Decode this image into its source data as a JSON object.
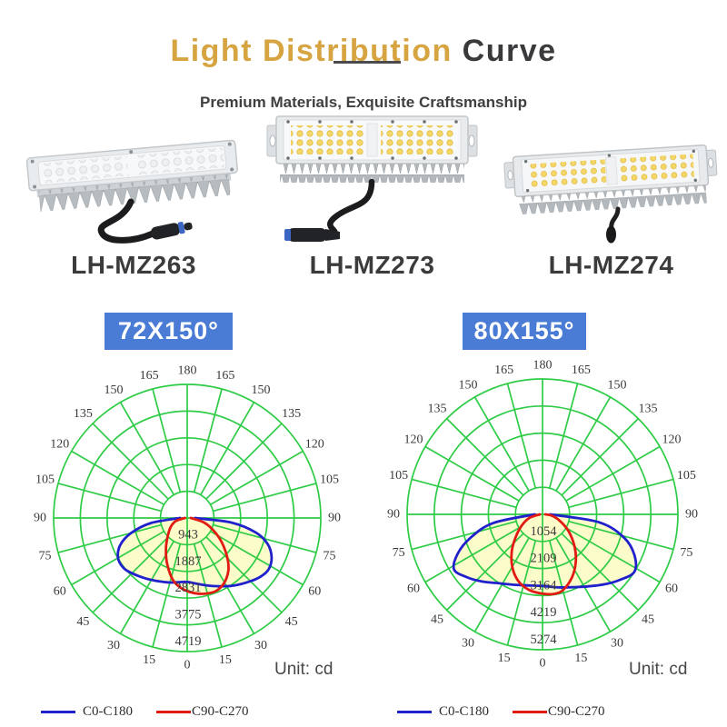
{
  "theme": {
    "accent_gold": "#d6a440",
    "title_dark": "#3a3a3c",
    "badge_blue": "#4b7cd5",
    "text_gray": "#3f3f41"
  },
  "header": {
    "title_highlight": "Light Distribution ",
    "title_rest": "Curve",
    "subtitle": "Premium Materials, Exquisite Craftsmanship"
  },
  "products": [
    {
      "model": "LH-MZ263"
    },
    {
      "model": "LH-MZ273"
    },
    {
      "model": "LH-MZ274"
    }
  ],
  "chart_data": [
    {
      "type": "line",
      "subtype": "polar-photometric",
      "badge": "72X150°",
      "unit_label": "Unit: cd",
      "max_value": 4719,
      "ring_values": [
        943,
        1887,
        2831,
        3775,
        4719
      ],
      "angle_step_deg": 15,
      "angle_labels": [
        0,
        15,
        30,
        45,
        60,
        75,
        90,
        105,
        120,
        135,
        150,
        165,
        180
      ],
      "grid_color": "#2ecc46",
      "fill_color": "#fcfcca",
      "legend_position": "bottom-left",
      "series": [
        {
          "name": "C0-C180",
          "color": "#2020cc",
          "points": [
            [
              -90,
              250
            ],
            [
              -82,
              1300
            ],
            [
              -75,
              2050
            ],
            [
              -68,
              2550
            ],
            [
              -60,
              2820
            ],
            [
              -52,
              2860
            ],
            [
              -45,
              2760
            ],
            [
              -35,
              2600
            ],
            [
              -25,
              2460
            ],
            [
              -15,
              2360
            ],
            [
              -8,
              2290
            ],
            [
              0,
              2260
            ],
            [
              8,
              2340
            ],
            [
              15,
              2460
            ],
            [
              25,
              2660
            ],
            [
              35,
              2910
            ],
            [
              45,
              3160
            ],
            [
              52,
              3330
            ],
            [
              58,
              3400
            ],
            [
              65,
              3290
            ],
            [
              72,
              2990
            ],
            [
              78,
              2480
            ],
            [
              84,
              1580
            ],
            [
              90,
              280
            ]
          ]
        },
        {
          "name": "C90-C270",
          "color": "#e11b12",
          "points": [
            [
              -90,
              80
            ],
            [
              -75,
              420
            ],
            [
              -60,
              690
            ],
            [
              -45,
              990
            ],
            [
              -35,
              1310
            ],
            [
              -25,
              1710
            ],
            [
              -15,
              2160
            ],
            [
              -8,
              2410
            ],
            [
              0,
              2580
            ],
            [
              8,
              2700
            ],
            [
              15,
              2760
            ],
            [
              22,
              2770
            ],
            [
              30,
              2630
            ],
            [
              38,
              2360
            ],
            [
              45,
              2010
            ],
            [
              55,
              1490
            ],
            [
              65,
              1010
            ],
            [
              75,
              610
            ],
            [
              90,
              130
            ]
          ]
        }
      ]
    },
    {
      "type": "line",
      "subtype": "polar-photometric",
      "badge": "80X155°",
      "unit_label": "Unit: cd",
      "max_value": 5274,
      "ring_values": [
        1054,
        2109,
        3164,
        4219,
        5274
      ],
      "angle_step_deg": 15,
      "angle_labels": [
        0,
        15,
        30,
        45,
        60,
        75,
        90,
        105,
        120,
        135,
        150,
        165,
        180
      ],
      "grid_color": "#2ecc46",
      "fill_color": "#fcfcca",
      "legend_position": "bottom-left",
      "series": [
        {
          "name": "C0-C180",
          "color": "#2020cc",
          "points": [
            [
              -90,
              300
            ],
            [
              -80,
              1950
            ],
            [
              -72,
              2950
            ],
            [
              -65,
              3650
            ],
            [
              -58,
              4060
            ],
            [
              -50,
              3820
            ],
            [
              -42,
              3520
            ],
            [
              -32,
              3170
            ],
            [
              -22,
              2960
            ],
            [
              -12,
              2830
            ],
            [
              0,
              2790
            ],
            [
              12,
              2910
            ],
            [
              22,
              3060
            ],
            [
              32,
              3310
            ],
            [
              42,
              3660
            ],
            [
              50,
              3960
            ],
            [
              58,
              4220
            ],
            [
              66,
              3920
            ],
            [
              74,
              3310
            ],
            [
              82,
              2230
            ],
            [
              90,
              300
            ]
          ]
        },
        {
          "name": "C90-C270",
          "color": "#e11b12",
          "points": [
            [
              -90,
              100
            ],
            [
              -75,
              530
            ],
            [
              -62,
              910
            ],
            [
              -50,
              1360
            ],
            [
              -40,
              1860
            ],
            [
              -30,
              2360
            ],
            [
              -20,
              2760
            ],
            [
              -10,
              2990
            ],
            [
              0,
              3090
            ],
            [
              8,
              3130
            ],
            [
              15,
              3060
            ],
            [
              25,
              2710
            ],
            [
              35,
              2260
            ],
            [
              45,
              1760
            ],
            [
              57,
              1210
            ],
            [
              70,
              710
            ],
            [
              82,
              360
            ],
            [
              90,
              110
            ]
          ]
        }
      ]
    }
  ]
}
